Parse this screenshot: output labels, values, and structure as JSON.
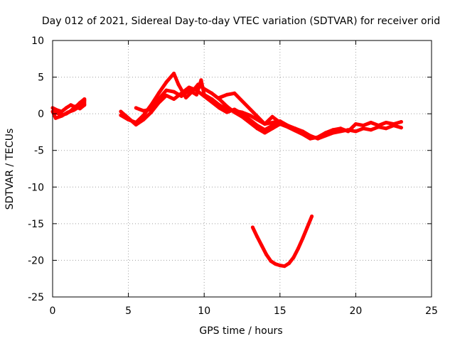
{
  "chart_data": {
    "type": "line",
    "title": "Day 012 of 2021, Sidereal Day-to-day VTEC variation (SDTVAR) for receiver orid",
    "xlabel": "GPS time / hours",
    "ylabel": "SDTVAR / TECUs",
    "xlim": [
      0,
      25
    ],
    "ylim": [
      -25,
      10
    ],
    "xticks": [
      0,
      5,
      10,
      15,
      20,
      25
    ],
    "yticks": [
      10,
      5,
      0,
      -5,
      -10,
      -15,
      -20,
      -25
    ],
    "grid": true,
    "legend": "none",
    "color": "#ff0000",
    "series": [
      {
        "name": "segment-1",
        "x": [
          0.0,
          0.3,
          0.6,
          0.9,
          1.2,
          1.5,
          1.8,
          2.1,
          2.1,
          1.8,
          1.5,
          1.2,
          0.9,
          0.6,
          0.3,
          0.0,
          0.2,
          0.6,
          1.0,
          1.4,
          1.8,
          2.1
        ],
        "y": [
          0.8,
          0.5,
          0.3,
          0.8,
          1.2,
          0.9,
          1.5,
          2.0,
          1.2,
          0.7,
          1.0,
          0.4,
          0.0,
          -0.2,
          0.1,
          0.3,
          -0.6,
          -0.3,
          0.2,
          0.5,
          1.0,
          1.8
        ]
      },
      {
        "name": "segment-2",
        "x": [
          4.5,
          5.0,
          5.5,
          6.0,
          6.5,
          7.0,
          7.5,
          8.0,
          8.5,
          9.0,
          9.5,
          10.0,
          10.5,
          11.0,
          11.5,
          12.0,
          12.5,
          13.0,
          13.5,
          14.0,
          14.5,
          15.0,
          15.5,
          16.0,
          16.5,
          17.0,
          17.5,
          18.0,
          18.5,
          19.0,
          19.5,
          20.0,
          20.5,
          21.0,
          21.5,
          22.0,
          22.5,
          23.0
        ],
        "y": [
          0.3,
          -0.6,
          -1.5,
          -0.8,
          0.2,
          1.5,
          2.5,
          2.0,
          2.8,
          3.6,
          3.2,
          2.4,
          1.6,
          0.8,
          0.2,
          0.6,
          0.0,
          -0.8,
          -1.6,
          -2.2,
          -1.6,
          -1.0,
          -1.6,
          -2.0,
          -2.4,
          -3.0,
          -3.4,
          -3.0,
          -2.6,
          -2.4,
          -2.2,
          -2.4,
          -2.0,
          -2.2,
          -1.8,
          -2.0,
          -1.6,
          -1.9
        ]
      },
      {
        "name": "segment-3",
        "x": [
          4.5,
          5.0,
          5.5,
          6.0,
          6.5,
          7.0,
          7.5,
          8.0,
          8.3,
          8.8,
          9.2,
          9.6,
          10.0,
          10.5,
          11.0,
          11.5,
          12.0,
          12.5,
          13.0,
          13.5,
          14.0,
          14.5,
          15.0,
          15.5,
          16.0,
          16.5,
          17.0,
          17.5,
          18.0,
          18.5,
          19.0,
          19.5,
          20.0,
          20.5,
          21.0,
          21.5,
          22.0,
          22.5,
          23.0
        ],
        "y": [
          -0.2,
          -0.8,
          -1.2,
          -0.2,
          1.2,
          2.8,
          4.3,
          5.5,
          4.0,
          2.2,
          3.0,
          4.0,
          3.4,
          2.8,
          2.0,
          1.0,
          0.2,
          -0.4,
          -1.2,
          -2.0,
          -2.6,
          -2.0,
          -1.4,
          -1.8,
          -2.3,
          -2.8,
          -3.4,
          -3.2,
          -2.6,
          -2.2,
          -2.0,
          -2.4,
          -1.4,
          -1.6,
          -1.2,
          -1.6,
          -1.2,
          -1.4,
          -1.1
        ]
      },
      {
        "name": "segment-4",
        "x": [
          5.5,
          6.0,
          6.5,
          7.0,
          7.5,
          8.0,
          8.5,
          9.0,
          9.5,
          9.8,
          10.0,
          10.5,
          11.0,
          11.5,
          12.0,
          12.5,
          13.0,
          13.5,
          14.0,
          14.5,
          15.0
        ],
        "y": [
          0.8,
          0.4,
          0.6,
          2.0,
          3.2,
          3.0,
          2.4,
          3.2,
          2.6,
          4.6,
          2.6,
          2.0,
          1.2,
          0.6,
          0.4,
          0.2,
          -0.2,
          -0.8,
          -1.4,
          -1.2,
          -1.0
        ]
      },
      {
        "name": "segment-5",
        "x": [
          11.0,
          11.5,
          12.0,
          14.0,
          14.5,
          15.0
        ],
        "y": [
          2.2,
          2.6,
          2.8,
          -1.4,
          -0.4,
          -1.2
        ]
      },
      {
        "name": "segment-6",
        "x": [
          13.2,
          13.5,
          13.8,
          14.1,
          14.4,
          14.7,
          15.0,
          15.3,
          15.6,
          15.9,
          16.2,
          16.5,
          16.8,
          17.1
        ],
        "y": [
          -15.5,
          -16.8,
          -18.0,
          -19.2,
          -20.1,
          -20.5,
          -20.7,
          -20.8,
          -20.4,
          -19.6,
          -18.4,
          -17.0,
          -15.5,
          -14.0
        ]
      }
    ]
  }
}
